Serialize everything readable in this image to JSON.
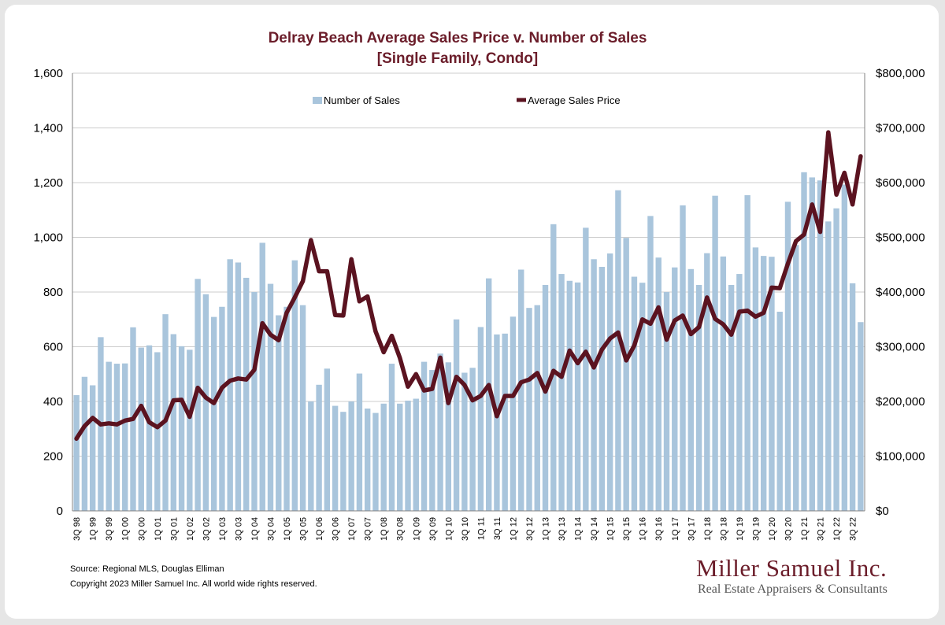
{
  "title_line1": "Delray Beach Average Sales Price v. Number of Sales",
  "title_line2": "[Single Family, Condo]",
  "source": "Source: Regional MLS, Douglas Elliman",
  "copyright": "Copyright 2023 Miller Samuel Inc.  All world wide rights reserved.",
  "brand_name": "Miller Samuel Inc.",
  "brand_tagline": "Real Estate Appraisers & Consultants",
  "colors": {
    "bars": "#a9c5dc",
    "line": "#5b1320",
    "title": "#6b1d2a",
    "grid": "#cccccc"
  },
  "chart_data": {
    "type": "bar",
    "combo": "bar+line (dual axis)",
    "categories": [
      "3Q 98",
      "4Q 98",
      "1Q 99",
      "2Q 99",
      "3Q 99",
      "4Q 99",
      "1Q 00",
      "2Q 00",
      "3Q 00",
      "4Q 00",
      "1Q 01",
      "2Q 01",
      "3Q 01",
      "4Q 01",
      "1Q 02",
      "2Q 02",
      "3Q 02",
      "4Q 02",
      "1Q 03",
      "2Q 03",
      "3Q 03",
      "4Q 03",
      "1Q 04",
      "2Q 04",
      "3Q 04",
      "4Q 04",
      "1Q 05",
      "2Q 05",
      "3Q 05",
      "4Q 05",
      "1Q 06",
      "2Q 06",
      "3Q 06",
      "4Q 06",
      "1Q 07",
      "2Q 07",
      "3Q 07",
      "4Q 07",
      "1Q 08",
      "2Q 08",
      "3Q 08",
      "4Q 08",
      "1Q 09",
      "2Q 09",
      "3Q 09",
      "4Q 09",
      "1Q 10",
      "2Q 10",
      "3Q 10",
      "4Q 10",
      "1Q 11",
      "2Q 11",
      "3Q 11",
      "4Q 11",
      "1Q 12",
      "2Q 12",
      "3Q 12",
      "4Q 12",
      "1Q 13",
      "2Q 13",
      "3Q 13",
      "4Q 13",
      "1Q 14",
      "2Q 14",
      "3Q 14",
      "4Q 14",
      "1Q 15",
      "2Q 15",
      "3Q 15",
      "4Q 15",
      "1Q 16",
      "2Q 16",
      "3Q 16",
      "4Q 16",
      "1Q 17",
      "2Q 17",
      "3Q 17",
      "4Q 17",
      "1Q 18",
      "2Q 18",
      "3Q 18",
      "4Q 18",
      "1Q 19",
      "2Q 19",
      "3Q 19",
      "4Q 19",
      "1Q 20",
      "2Q 20",
      "3Q 20",
      "4Q 20",
      "1Q 21",
      "2Q 21",
      "3Q 21",
      "4Q 21",
      "1Q 22",
      "2Q 22",
      "3Q 22",
      "4Q 22"
    ],
    "x_tick_labels_shown": [
      "3Q 98",
      "1Q 99",
      "3Q 99",
      "1Q 00",
      "3Q 00",
      "1Q 01",
      "3Q 01",
      "1Q 02",
      "3Q 02",
      "1Q 03",
      "3Q 03",
      "1Q 04",
      "3Q 04",
      "1Q 05",
      "3Q 05",
      "1Q 06",
      "3Q 06",
      "1Q 07",
      "3Q 07",
      "1Q 08",
      "3Q 08",
      "1Q 09",
      "3Q 09",
      "1Q 10",
      "3Q 10",
      "1Q 11",
      "3Q 11",
      "1Q 12",
      "3Q 12",
      "1Q 13",
      "3Q 13",
      "1Q 14",
      "3Q 14",
      "1Q 15",
      "3Q 15",
      "1Q 16",
      "3Q 16",
      "1Q 17",
      "3Q 17",
      "1Q 18",
      "3Q 18",
      "1Q 19",
      "3Q 19",
      "1Q 20",
      "3Q 20",
      "1Q 21",
      "3Q 21",
      "1Q 22",
      "3Q 22"
    ],
    "series": [
      {
        "name": "Number of Sales",
        "type": "bar",
        "axis": "left",
        "values": [
          423,
          490,
          459,
          635,
          545,
          538,
          539,
          671,
          597,
          605,
          580,
          719,
          646,
          602,
          589,
          848,
          792,
          709,
          746,
          920,
          908,
          852,
          800,
          980,
          830,
          715,
          746,
          916,
          752,
          400,
          461,
          520,
          384,
          362,
          400,
          502,
          374,
          358,
          392,
          538,
          392,
          403,
          410,
          545,
          515,
          575,
          543,
          700,
          505,
          523,
          672,
          850,
          645,
          648,
          710,
          882,
          742,
          752,
          826,
          1048,
          866,
          841,
          835,
          1035,
          920,
          892,
          941,
          1172,
          998,
          856,
          834,
          1078,
          926,
          800,
          890,
          1117,
          884,
          826,
          942,
          1152,
          930,
          826,
          866,
          1154,
          963,
          932,
          929,
          728,
          1130,
          972,
          1238,
          1219,
          1208,
          1058,
          1106,
          1193,
          832,
          690
        ]
      },
      {
        "name": "Average Sales Price",
        "type": "line",
        "axis": "right",
        "values": [
          132000,
          155000,
          170000,
          158000,
          160000,
          158000,
          165000,
          168000,
          192000,
          162000,
          153000,
          165000,
          202000,
          203000,
          172000,
          225000,
          207000,
          197000,
          225000,
          238000,
          242000,
          240000,
          258000,
          343000,
          322000,
          312000,
          362000,
          390000,
          420000,
          495000,
          438000,
          438000,
          358000,
          357000,
          460000,
          383000,
          392000,
          328000,
          290000,
          320000,
          280000,
          227000,
          250000,
          220000,
          223000,
          280000,
          197000,
          245000,
          230000,
          202000,
          210000,
          230000,
          173000,
          210000,
          210000,
          235000,
          240000,
          252000,
          218000,
          256000,
          245000,
          293000,
          270000,
          291000,
          262000,
          295000,
          315000,
          326000,
          275000,
          302000,
          350000,
          342000,
          372000,
          313000,
          348000,
          357000,
          323000,
          336000,
          390000,
          351000,
          341000,
          322000,
          364000,
          366000,
          355000,
          362000,
          408000,
          407000,
          452000,
          493000,
          505000,
          560000,
          510000,
          692000,
          578000,
          618000,
          560000,
          648000
        ]
      }
    ],
    "y_left": {
      "min": 0,
      "max": 1600,
      "ticks": [
        "0",
        "200",
        "400",
        "600",
        "800",
        "1,000",
        "1,200",
        "1,400",
        "1,600"
      ]
    },
    "y_right": {
      "min": 0,
      "max": 800000,
      "ticks": [
        "$0",
        "$100,000",
        "$200,000",
        "$300,000",
        "$400,000",
        "$500,000",
        "$600,000",
        "$700,000",
        "$800,000"
      ]
    },
    "title": "Delray Beach Average Sales Price v. Number of Sales",
    "subtitle": "[Single Family, Condo]",
    "grid": true,
    "legend": "top"
  }
}
